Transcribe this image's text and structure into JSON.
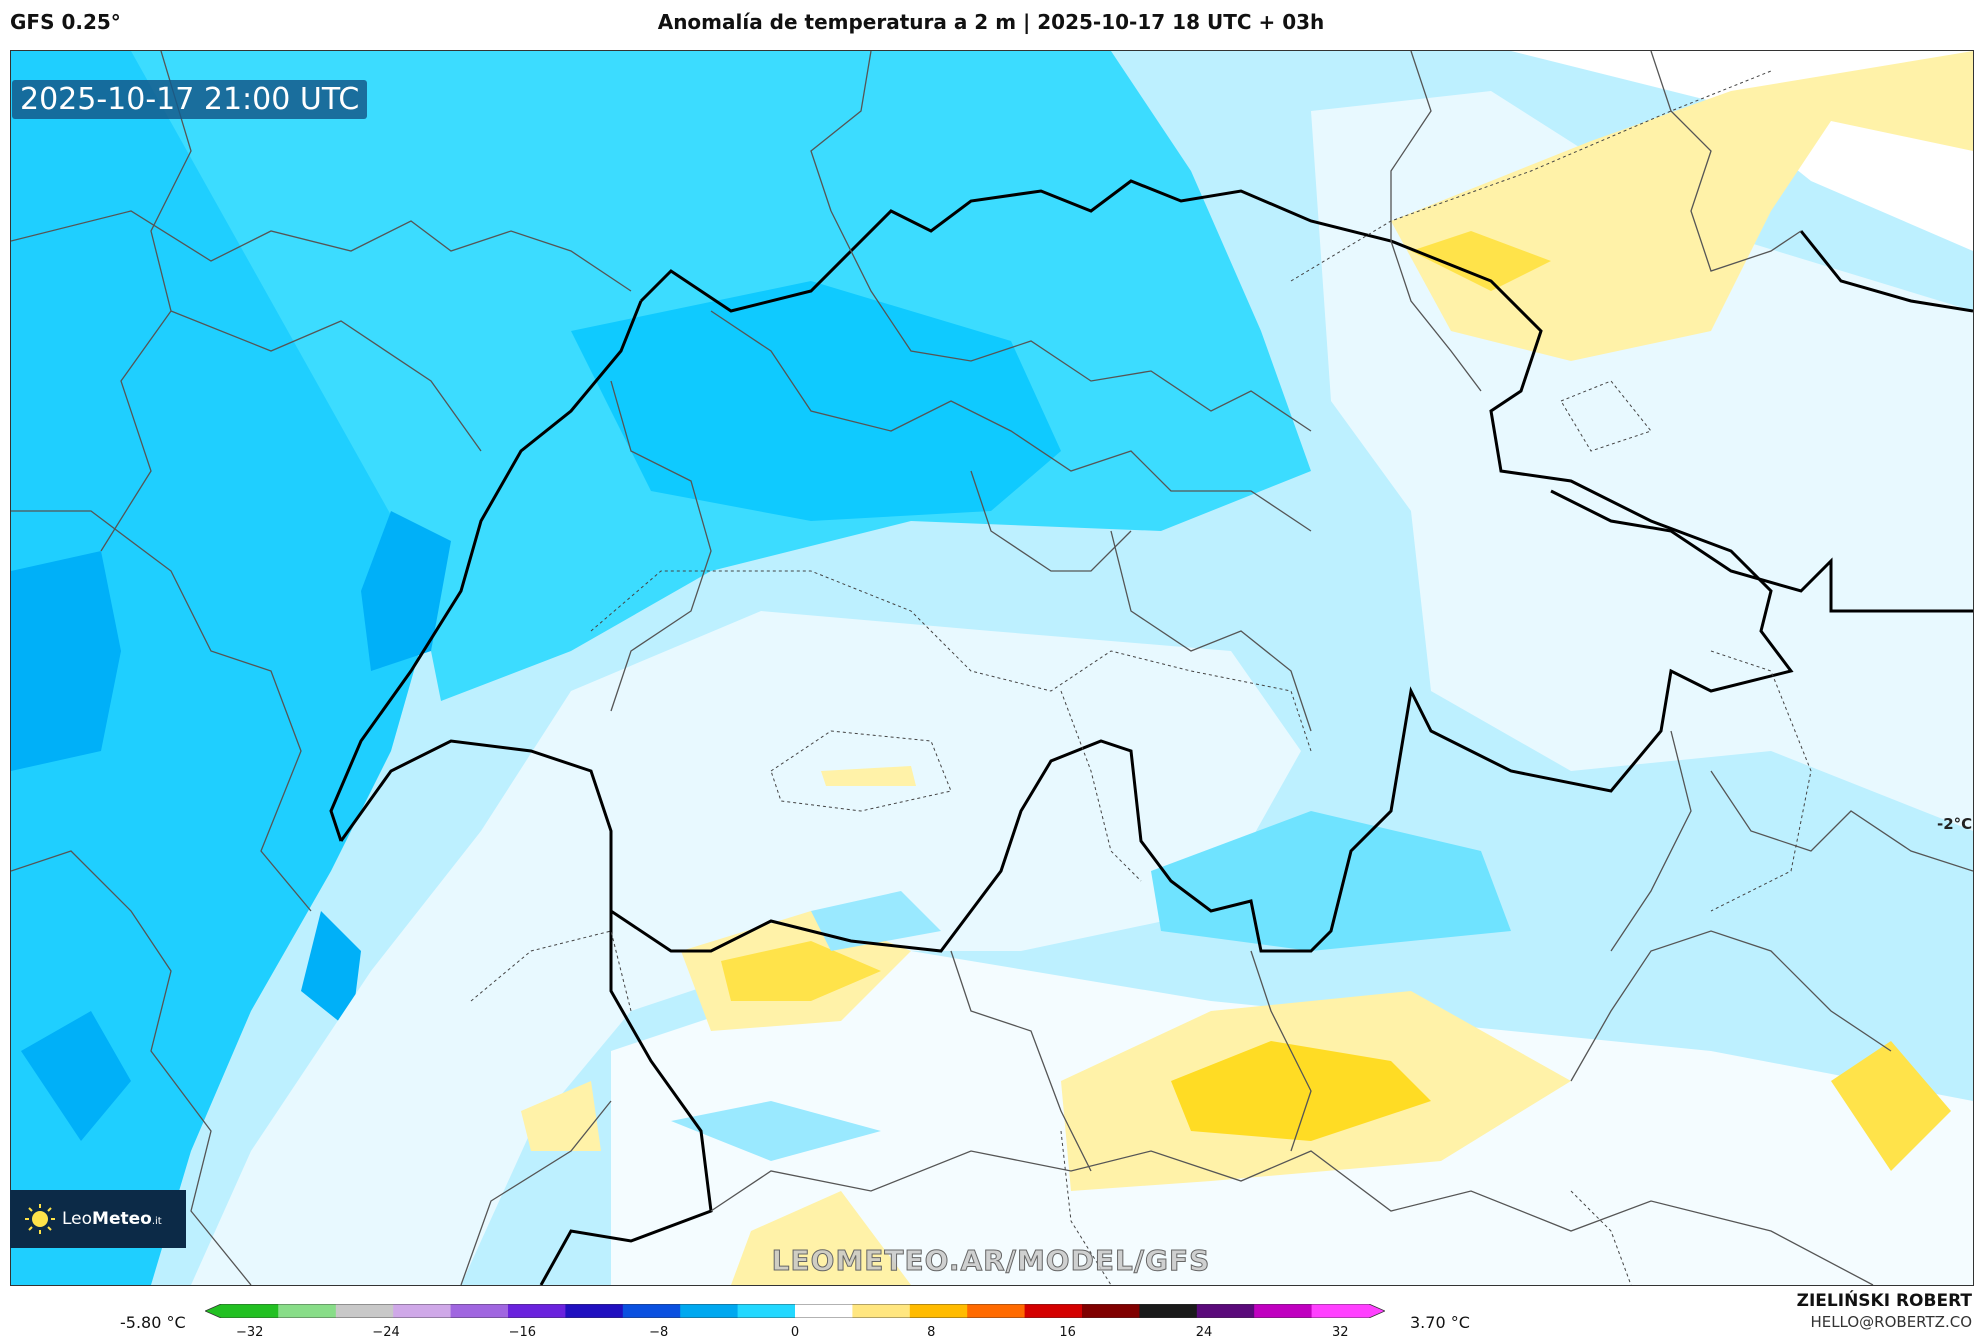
{
  "header": {
    "model": "GFS 0.25°",
    "title": "Anomalía de temperatura a 2 m | 2025-10-17 18 UTC + 03h"
  },
  "map": {
    "valid_time": "2025-10-17 21:00 UTC",
    "contour_label": "-2°C",
    "watermark": "LEOMETEO.AR/MODEL/GFS",
    "logo": {
      "prefix": "Leo",
      "bold": "Meteo",
      "suffix": ".it",
      "icon": "sun-icon"
    }
  },
  "legend": {
    "min_label": "-5.80 °C",
    "max_label": "3.70 °C",
    "ticks": [
      "−32",
      "−24",
      "−16",
      "−8",
      "0",
      "8",
      "16",
      "24",
      "32"
    ],
    "colors": [
      "#22c022",
      "#88dd88",
      "#c8c8c8",
      "#cfa8e8",
      "#a066e0",
      "#6a22dd",
      "#2010c0",
      "#0a50e0",
      "#00a8f0",
      "#22d8ff",
      "#ffffff",
      "#ffe680",
      "#ffbb00",
      "#ff6a00",
      "#d40000",
      "#800000",
      "#1a1a1a",
      "#5a0a7a",
      "#c000c0",
      "#ff40ff"
    ]
  },
  "footer": {
    "author": "ZIELIŃSKI ROBERT",
    "email": "HELLO@ROBERTZ.CO"
  }
}
